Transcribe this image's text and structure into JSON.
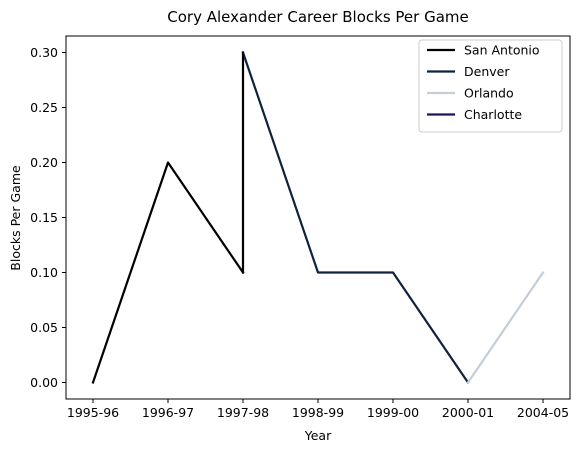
{
  "chart_data": {
    "type": "line",
    "title": "Cory Alexander Career Blocks Per Game",
    "xlabel": "Year",
    "ylabel": "Blocks Per Game",
    "categories": [
      "1995-96",
      "1996-97",
      "1997-98",
      "1998-99",
      "1999-00",
      "2000-01",
      "2004-05"
    ],
    "yticks": [
      "0.00",
      "0.05",
      "0.10",
      "0.15",
      "0.20",
      "0.25",
      "0.30"
    ],
    "ylim": [
      -0.015,
      0.315
    ],
    "grid": false,
    "legend_position": "top-right",
    "series": [
      {
        "name": "San Antonio",
        "color": "#000000",
        "points": [
          [
            "1995-96",
            0.0
          ],
          [
            "1996-97",
            0.2
          ],
          [
            "1997-98",
            0.1
          ]
        ]
      },
      {
        "name": "Denver",
        "color": "#0e2240",
        "points": [
          [
            "1997-98",
            0.3
          ],
          [
            "1998-99",
            0.1
          ],
          [
            "1999-00",
            0.1
          ],
          [
            "2000-01",
            0.0
          ]
        ]
      },
      {
        "name": "Orlando",
        "color": "#c4ced4",
        "points": [
          [
            "2000-01",
            0.0
          ],
          [
            "2004-05",
            0.1
          ]
        ]
      },
      {
        "name": "Charlotte",
        "color": "#1d1160",
        "points": []
      }
    ],
    "connector": {
      "color": "#000000",
      "points": [
        [
          "1997-98",
          0.1
        ],
        [
          "1997-98",
          0.3
        ]
      ]
    }
  }
}
